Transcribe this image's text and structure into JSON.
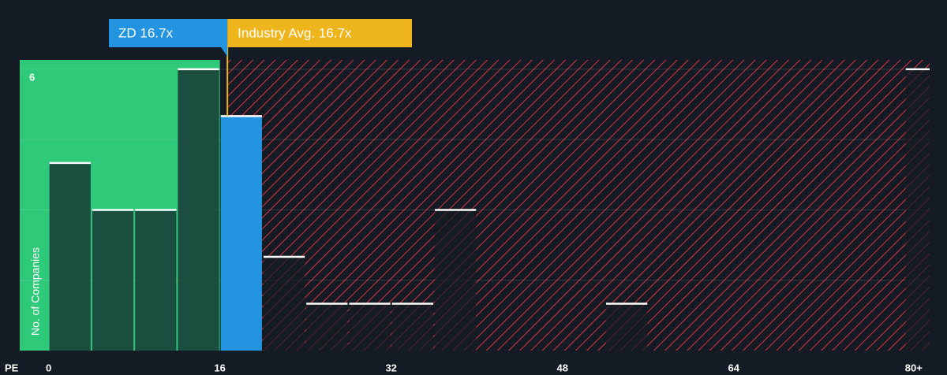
{
  "chart_data": {
    "type": "histogram",
    "x_label": "PE",
    "y_label": "No. of Companies",
    "bins": [
      0,
      4,
      8,
      12,
      16,
      20,
      24,
      28,
      32,
      36,
      40,
      44,
      48,
      52,
      56,
      60,
      64,
      68,
      72,
      76,
      80,
      84
    ],
    "values": [
      4,
      3,
      3,
      6,
      5,
      2,
      1,
      1,
      1,
      3,
      0,
      0,
      0,
      1,
      0,
      0,
      0,
      0,
      0,
      0,
      6
    ],
    "xlim": [
      -2.7,
      82.3
    ],
    "ylim": [
      0,
      6.2
    ],
    "xticks": [
      0,
      16,
      32,
      48,
      64,
      {
        "value": 80,
        "label": "80+"
      }
    ],
    "yticks": [
      6
    ],
    "grid_lines": [
      1.5,
      3,
      4.5,
      6
    ],
    "company": {
      "label": "ZD 16.7x",
      "value": 16.7,
      "color": "#2394e0"
    },
    "industry": {
      "label": "Industry Avg. 16.7x",
      "value": 16.7,
      "color": "#efb51d"
    },
    "below_color": "#2fc97a",
    "above_color": "#d9343f"
  }
}
